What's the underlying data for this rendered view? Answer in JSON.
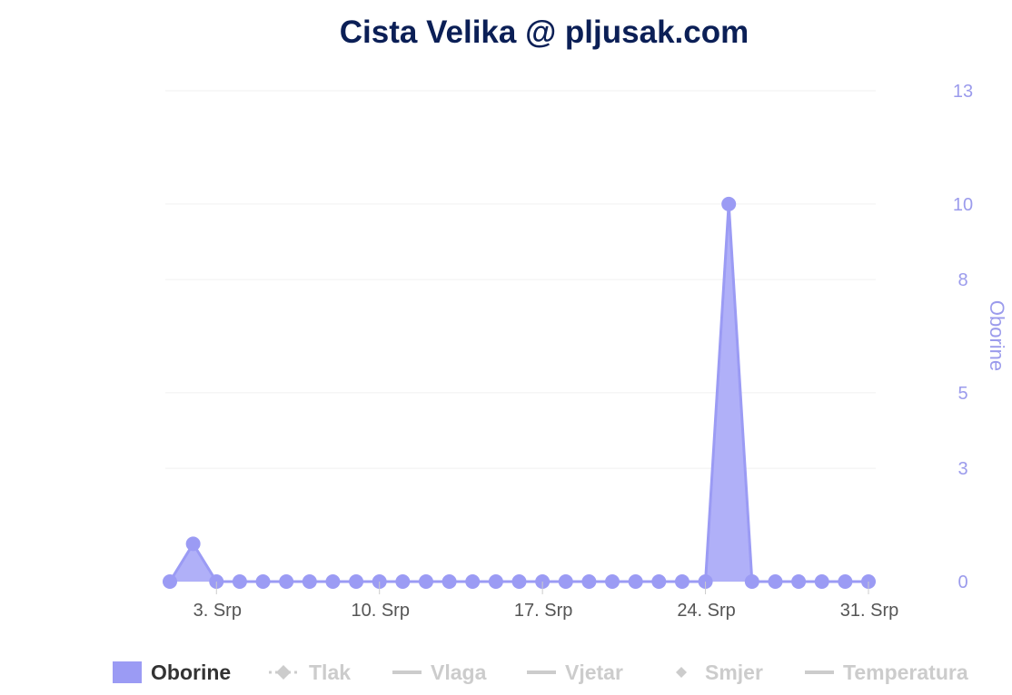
{
  "chart_data": {
    "type": "area",
    "title": "Cista Velika @ pljusak.com",
    "ylabel": "Oborine",
    "ylim": [
      0,
      13
    ],
    "yticks": [
      "0",
      "3",
      "5",
      "8",
      "10",
      "13"
    ],
    "xticks": [
      {
        "day": 3,
        "label": "3. Srp"
      },
      {
        "day": 10,
        "label": "10. Srp"
      },
      {
        "day": 17,
        "label": "17. Srp"
      },
      {
        "day": 24,
        "label": "24. Srp"
      },
      {
        "day": 31,
        "label": "31. Srp"
      }
    ],
    "xrange": [
      1,
      31
    ],
    "grid": true,
    "legend_position": "bottom",
    "series": [
      {
        "name": "Oborine",
        "color": "#9b9bf4",
        "visible": true,
        "x": [
          1,
          2,
          3,
          4,
          5,
          6,
          7,
          8,
          9,
          10,
          11,
          12,
          13,
          14,
          15,
          16,
          17,
          18,
          19,
          20,
          21,
          22,
          23,
          24,
          25,
          26,
          27,
          28,
          29,
          30,
          31
        ],
        "values": [
          0,
          1,
          0,
          0,
          0,
          0,
          0,
          0,
          0,
          0,
          0,
          0,
          0,
          0,
          0,
          0,
          0,
          0,
          0,
          0,
          0,
          0,
          0,
          0,
          10,
          0,
          0,
          0,
          0,
          0,
          0
        ]
      }
    ],
    "legend": [
      {
        "name": "Oborine",
        "symbol": "area",
        "active": true
      },
      {
        "name": "Tlak",
        "symbol": "dashed-diamond",
        "active": false
      },
      {
        "name": "Vlaga",
        "symbol": "line",
        "active": false
      },
      {
        "name": "Vjetar",
        "symbol": "line",
        "active": false
      },
      {
        "name": "Smjer",
        "symbol": "diamond",
        "active": false
      },
      {
        "name": "Temperatura",
        "symbol": "line",
        "active": false
      }
    ]
  },
  "colors": {
    "title": "#0b1f56",
    "axis": "#9b9bec",
    "series": "#9b9bf4",
    "fill": "#b0b0f8",
    "legend_active": "#333333",
    "legend_inactive": "#cccccc",
    "grid": "#f0f0f0"
  }
}
